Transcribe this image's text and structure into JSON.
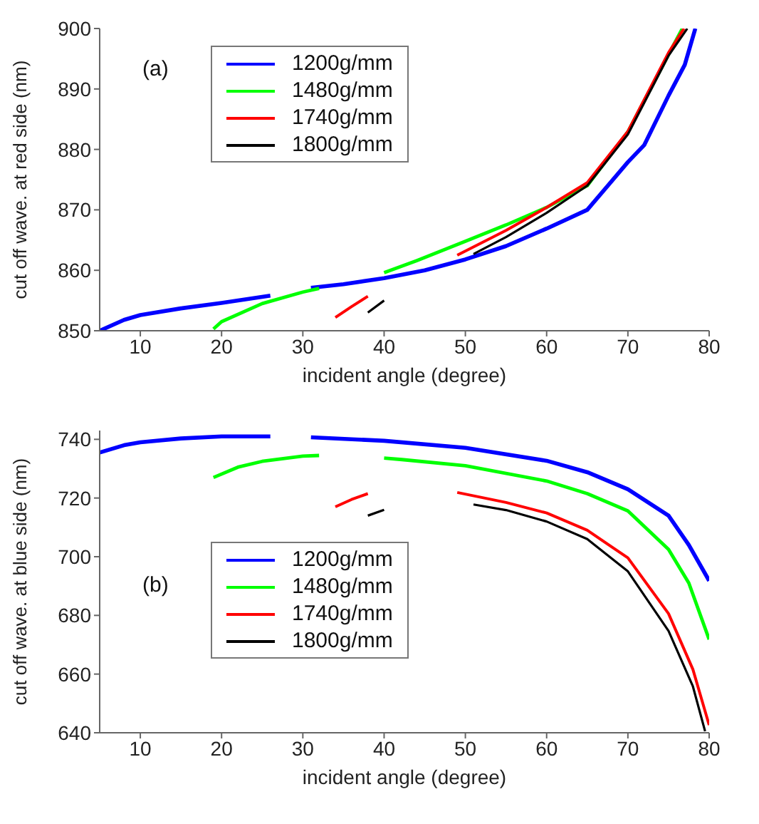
{
  "chart_data": [
    {
      "type": "line",
      "xlabel": "incident angle (degree)",
      "ylabel": "cut off wave. at red side (nm)",
      "annotations": [
        "(a)"
      ],
      "xlim": [
        5,
        80
      ],
      "ylim": [
        850,
        900
      ],
      "xticks": [
        10,
        20,
        30,
        40,
        50,
        60,
        70,
        80
      ],
      "yticks": [
        850,
        860,
        870,
        880,
        890,
        900
      ],
      "grid": false,
      "legend": "top left",
      "marker": "none",
      "line_style": "solid",
      "series": [
        {
          "name": "1200g/mm",
          "color": "#0000ff",
          "x": [
            5,
            8,
            10,
            15,
            20,
            26,
            28,
            31,
            35,
            40,
            45,
            50,
            55,
            60,
            65,
            70,
            72,
            75,
            77,
            78.3
          ],
          "values": [
            850,
            851.8,
            852.6,
            853.7,
            854.6,
            855.8,
            null,
            857.1,
            857.7,
            858.7,
            860,
            861.8,
            864,
            866.9,
            870,
            877.9,
            880.7,
            888.9,
            894,
            900
          ]
        },
        {
          "name": "1480g/mm",
          "color": "#00ff00",
          "x": [
            19,
            20,
            25,
            30,
            32,
            36,
            40,
            44,
            50,
            55,
            60,
            65,
            70,
            75,
            76.7
          ],
          "values": [
            850.3,
            851.5,
            854.5,
            856.4,
            857,
            null,
            859.6,
            861.6,
            864.8,
            867.5,
            870.4,
            874,
            882.9,
            895.7,
            900
          ]
        },
        {
          "name": "1740g/mm",
          "color": "#ff0000",
          "x": [
            34,
            36,
            38,
            44,
            49,
            55,
            60,
            65,
            70,
            75,
            76.9
          ],
          "values": [
            852.2,
            854,
            855.7,
            null,
            862.5,
            866.6,
            870.4,
            874.5,
            883,
            896,
            900
          ]
        },
        {
          "name": "1800g/mm",
          "color": "#000000",
          "x": [
            38,
            40,
            45,
            51,
            55,
            60,
            65,
            70,
            75,
            77.3
          ],
          "values": [
            853,
            855,
            null,
            862.7,
            865.5,
            869.5,
            874,
            882.5,
            895.5,
            900
          ]
        }
      ]
    },
    {
      "type": "line",
      "xlabel": "incident angle (degree)",
      "ylabel": "cut off wave. at blue side (nm)",
      "annotations": [
        "(b)"
      ],
      "xlim": [
        5,
        80
      ],
      "ylim": [
        640,
        743
      ],
      "xticks": [
        10,
        20,
        30,
        40,
        50,
        60,
        70,
        80
      ],
      "yticks": [
        640,
        660,
        680,
        700,
        720,
        740
      ],
      "grid": false,
      "legend": "left",
      "marker": "none",
      "line_style": "solid",
      "series": [
        {
          "name": "1200g/mm",
          "color": "#0000ff",
          "x": [
            5,
            8,
            10,
            15,
            20,
            26,
            28,
            31,
            40,
            50,
            60,
            65,
            70,
            75,
            77.5,
            80
          ],
          "values": [
            735.5,
            738,
            739,
            740.3,
            741,
            741,
            null,
            740.7,
            739.5,
            737.1,
            732.7,
            728.8,
            723,
            714,
            704,
            691.8
          ]
        },
        {
          "name": "1480g/mm",
          "color": "#00ff00",
          "x": [
            19,
            22,
            25,
            30,
            32,
            36,
            40,
            42.2,
            50,
            60,
            65,
            70,
            75,
            77.5,
            80
          ],
          "values": [
            727,
            730.5,
            732.5,
            734.3,
            734.5,
            null,
            733.6,
            733.1,
            731,
            725.8,
            721.5,
            715.6,
            702.5,
            691,
            671.8
          ]
        },
        {
          "name": "1740g/mm",
          "color": "#ff0000",
          "x": [
            34,
            36,
            38,
            44,
            49,
            55,
            60,
            65,
            70,
            75,
            78,
            80
          ],
          "values": [
            717,
            719.5,
            721.5,
            null,
            721.9,
            718.5,
            714.9,
            709,
            699.6,
            680.6,
            661.6,
            642.6
          ]
        },
        {
          "name": "1800g/mm",
          "color": "#000000",
          "x": [
            38,
            40,
            45,
            51,
            55,
            60,
            65,
            70,
            75,
            78,
            79.5
          ],
          "values": [
            714,
            716,
            null,
            717.8,
            715.9,
            712,
            706,
            695,
            674.7,
            655.8,
            640.5
          ]
        }
      ]
    }
  ]
}
